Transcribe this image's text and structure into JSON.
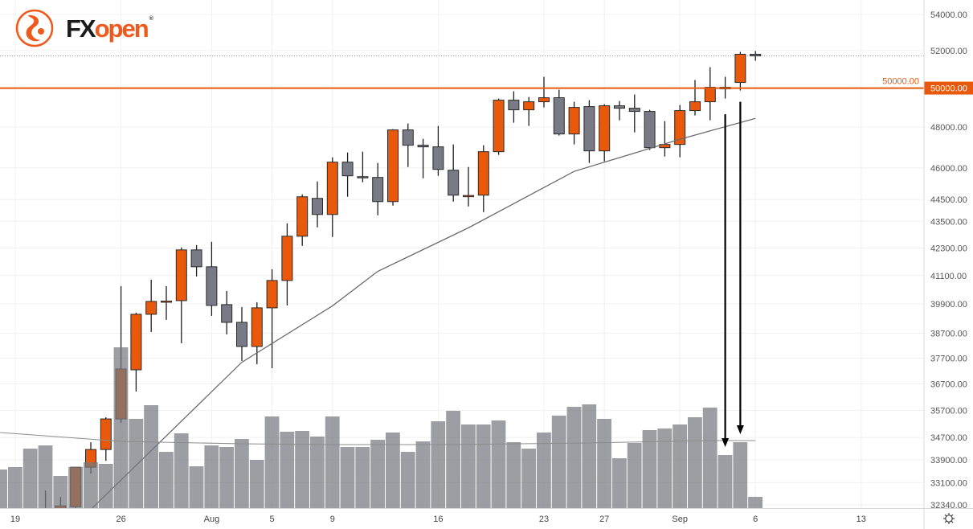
{
  "logo": {
    "fx": "FX",
    "open": "open",
    "reg": "®"
  },
  "colors": {
    "up": "#E8590C",
    "down": "#787B86",
    "ref_line": "#E8590C",
    "volume": "rgba(118,120,128,0.72)",
    "ma": "#6b6b6b",
    "volume_ma": "#8c8c8c"
  },
  "chart_data": {
    "type": "candlestick",
    "title": "",
    "yscale": "log",
    "ylim": [
      32340,
      54000
    ],
    "y_ticks": [
      "54000.00",
      "52000.00",
      "50000.00",
      "48000.00",
      "46000.00",
      "44500.00",
      "43500.00",
      "42300.00",
      "41100.00",
      "39900.00",
      "38700.00",
      "37700.00",
      "36700.00",
      "35700.00",
      "34700.00",
      "33900.00",
      "33100.00",
      "32340.00"
    ],
    "x_ticks": [
      {
        "label": "19",
        "date": "Jul 19"
      },
      {
        "label": "26",
        "date": "Jul 26"
      },
      {
        "label": "Aug",
        "date": "Aug 1"
      },
      {
        "label": "5",
        "date": "Aug 5"
      },
      {
        "label": "9",
        "date": "Aug 9"
      },
      {
        "label": "16",
        "date": "Aug 16"
      },
      {
        "label": "23",
        "date": "Aug 23"
      },
      {
        "label": "27",
        "date": "Aug 27"
      },
      {
        "label": "Sep",
        "date": "Sep 1"
      },
      {
        "label": "6",
        "date": "Sep 6"
      },
      {
        "label": "13",
        "date": "Sep 13"
      }
    ],
    "reference_line": {
      "price": 50000,
      "label": "50000.00"
    },
    "last_price": 51712,
    "candles": [
      {
        "date": "Jul 18",
        "volume": 49
      },
      {
        "date": "Jul 19",
        "volume": 52
      },
      {
        "date": "Jul 20",
        "volume": 75
      },
      {
        "date": "Jul 21",
        "o": 32000,
        "h": 32827,
        "l": 31700,
        "c": 31800,
        "volume": 79
      },
      {
        "date": "Jul 22",
        "o": 32198,
        "h": 32607,
        "l": 32100,
        "c": 32307,
        "volume": 41
      },
      {
        "date": "Jul 23",
        "o": 32279,
        "h": 33639,
        "l": 32198,
        "c": 33639,
        "volume": 52
      },
      {
        "date": "Jul 24",
        "o": 33639,
        "h": 34528,
        "l": 33413,
        "c": 34267,
        "volume": 58
      },
      {
        "date": "Jul 25",
        "o": 34267,
        "h": 35441,
        "l": 33866,
        "c": 35381,
        "volume": 56
      },
      {
        "date": "Jul 26",
        "o": 35381,
        "h": 40651,
        "l": 35233,
        "c": 37276,
        "volume": 201
      },
      {
        "date": "Jul 27",
        "o": 37245,
        "h": 39537,
        "l": 36408,
        "c": 39471,
        "volume": 112
      },
      {
        "date": "Jul 28",
        "o": 39471,
        "h": 40925,
        "l": 38747,
        "c": 40005,
        "volume": 129
      },
      {
        "date": "Jul 29",
        "o": 40005,
        "h": 40651,
        "l": 39239,
        "c": 40020,
        "volume": 71
      },
      {
        "date": "Jul 30",
        "o": 40039,
        "h": 42326,
        "l": 38293,
        "c": 42219,
        "volume": 94
      },
      {
        "date": "Jul 31",
        "o": 42219,
        "h": 42433,
        "l": 41063,
        "c": 41480,
        "volume": 53
      },
      {
        "date": "Aug 1",
        "o": 41480,
        "h": 42576,
        "l": 39404,
        "c": 39838,
        "volume": 79
      },
      {
        "date": "Aug 2",
        "o": 39871,
        "h": 40446,
        "l": 38649,
        "c": 39140,
        "volume": 77
      },
      {
        "date": "Aug 3",
        "o": 39140,
        "h": 39770,
        "l": 37591,
        "c": 38165,
        "volume": 87
      },
      {
        "date": "Aug 4",
        "o": 38165,
        "h": 39972,
        "l": 37465,
        "c": 39737,
        "volume": 61
      },
      {
        "date": "Aug 5",
        "o": 39737,
        "h": 41375,
        "l": 37307,
        "c": 40891,
        "volume": 115
      },
      {
        "date": "Aug 6",
        "o": 40891,
        "h": 43408,
        "l": 39838,
        "c": 42827,
        "volume": 96
      },
      {
        "date": "Aug 7",
        "o": 42827,
        "h": 44743,
        "l": 42397,
        "c": 44630,
        "volume": 97
      },
      {
        "date": "Aug 8",
        "o": 44555,
        "h": 45350,
        "l": 43225,
        "c": 43812,
        "volume": 90
      },
      {
        "date": "Aug 9",
        "o": 43812,
        "h": 46509,
        "l": 42791,
        "c": 46275,
        "volume": 115
      },
      {
        "date": "Aug 10",
        "o": 46275,
        "h": 46744,
        "l": 44630,
        "c": 45618,
        "volume": 77
      },
      {
        "date": "Aug 11",
        "o": 45579,
        "h": 46784,
        "l": 45312,
        "c": 45560,
        "volume": 77
      },
      {
        "date": "Aug 12",
        "o": 45541,
        "h": 46236,
        "l": 43774,
        "c": 44405,
        "volume": 86
      },
      {
        "date": "Aug 13",
        "o": 44405,
        "h": 47900,
        "l": 44219,
        "c": 47860,
        "volume": 95
      },
      {
        "date": "Aug 14",
        "o": 47860,
        "h": 48183,
        "l": 46042,
        "c": 47100,
        "volume": 71
      },
      {
        "date": "Aug 15",
        "o": 47100,
        "h": 47418,
        "l": 45503,
        "c": 47021,
        "volume": 84
      },
      {
        "date": "Aug 16",
        "o": 47021,
        "h": 48061,
        "l": 45618,
        "c": 45926,
        "volume": 109
      },
      {
        "date": "Aug 17",
        "o": 45887,
        "h": 47140,
        "l": 44405,
        "c": 44705,
        "volume": 122
      },
      {
        "date": "Aug 18",
        "o": 44668,
        "h": 46042,
        "l": 44182,
        "c": 44690,
        "volume": 105
      },
      {
        "date": "Aug 19",
        "o": 44705,
        "h": 47100,
        "l": 43922,
        "c": 46784,
        "volume": 105
      },
      {
        "date": "Aug 20",
        "o": 46784,
        "h": 49456,
        "l": 46627,
        "c": 49373,
        "volume": 110
      },
      {
        "date": "Aug 21",
        "o": 49373,
        "h": 49832,
        "l": 48223,
        "c": 48877,
        "volume": 83
      },
      {
        "date": "Aug 22",
        "o": 48877,
        "h": 49539,
        "l": 48061,
        "c": 49290,
        "volume": 75
      },
      {
        "date": "Aug 23",
        "o": 49290,
        "h": 50592,
        "l": 49000,
        "c": 49498,
        "volume": 95
      },
      {
        "date": "Aug 24",
        "o": 49498,
        "h": 49916,
        "l": 47578,
        "c": 47658,
        "volume": 116
      },
      {
        "date": "Aug 25",
        "o": 47658,
        "h": 49290,
        "l": 47140,
        "c": 49000,
        "volume": 127
      },
      {
        "date": "Aug 26",
        "o": 49042,
        "h": 49373,
        "l": 46236,
        "c": 46823,
        "volume": 130
      },
      {
        "date": "Aug 27",
        "o": 46823,
        "h": 49166,
        "l": 46314,
        "c": 49083,
        "volume": 112
      },
      {
        "date": "Aug 28",
        "o": 49083,
        "h": 49331,
        "l": 48345,
        "c": 48959,
        "volume": 63
      },
      {
        "date": "Aug 29",
        "o": 48959,
        "h": 49665,
        "l": 47739,
        "c": 48795,
        "volume": 82
      },
      {
        "date": "Aug 30",
        "o": 48795,
        "h": 48877,
        "l": 46863,
        "c": 46981,
        "volume": 98
      },
      {
        "date": "Aug 31",
        "o": 46981,
        "h": 48305,
        "l": 46548,
        "c": 47140,
        "volume": 100
      },
      {
        "date": "Sep 1",
        "o": 47140,
        "h": 49124,
        "l": 46509,
        "c": 48836,
        "volume": 105
      },
      {
        "date": "Sep 2",
        "o": 48836,
        "h": 50423,
        "l": 48590,
        "c": 49290,
        "volume": 114
      },
      {
        "date": "Sep 3",
        "o": 49290,
        "h": 51106,
        "l": 48345,
        "c": 50042,
        "volume": 126
      },
      {
        "date": "Sep 4",
        "o": 50042,
        "h": 50592,
        "l": 49456,
        "c": 49958,
        "volume": 67
      },
      {
        "date": "Sep 5",
        "o": 50295,
        "h": 51931,
        "l": 49874,
        "c": 51799,
        "volume": 83
      },
      {
        "date": "Sep 6",
        "o": 51799,
        "h": 51975,
        "l": 51450,
        "c": 51712,
        "volume": 15
      }
    ],
    "moving_average": [
      {
        "date": "Jul 24",
        "value": 32184
      },
      {
        "date": "Aug 3",
        "value": 37540
      },
      {
        "date": "Aug 9",
        "value": 39820
      },
      {
        "date": "Aug 12",
        "value": 41283
      },
      {
        "date": "Aug 18",
        "value": 43205
      },
      {
        "date": "Aug 25",
        "value": 45830
      },
      {
        "date": "Sep 1",
        "value": 47396
      },
      {
        "date": "Sep 6",
        "value": 48443
      }
    ],
    "volume_moving_average": [
      {
        "date": "Jul 18",
        "value": 95
      },
      {
        "date": "Jul 26",
        "value": 84
      },
      {
        "date": "Aug 3",
        "value": 81
      },
      {
        "date": "Aug 9",
        "value": 80
      },
      {
        "date": "Aug 17",
        "value": 80
      },
      {
        "date": "Aug 26",
        "value": 82
      },
      {
        "date": "Sep 3",
        "value": 85
      },
      {
        "date": "Sep 6",
        "value": 85
      }
    ],
    "annotations": [
      {
        "type": "arrow-down",
        "date": "Sep 4",
        "from_price": 48650,
        "to": "volume"
      },
      {
        "type": "arrow-down",
        "date": "Sep 5",
        "from_price": 49290,
        "to": "volume"
      }
    ]
  }
}
